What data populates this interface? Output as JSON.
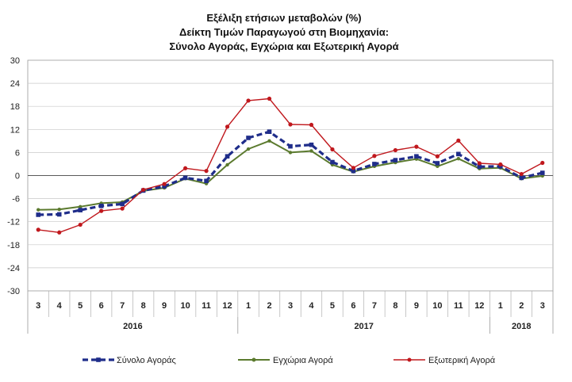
{
  "chart_data": {
    "type": "line",
    "title": [
      "Εξέλιξη ετήσιων μεταβολών (%)",
      "Δείκτη Τιμών Παραγωγού στη Βιομηχανία:",
      "Σύνολο Αγοράς, Εγχώρια και Εξωτερική Αγορά"
    ],
    "categories": [
      "3",
      "4",
      "5",
      "6",
      "7",
      "8",
      "9",
      "10",
      "11",
      "12",
      "1",
      "2",
      "3",
      "4",
      "5",
      "6",
      "7",
      "8",
      "9",
      "10",
      "11",
      "12",
      "1",
      "2",
      "3"
    ],
    "years": [
      {
        "label": "2016",
        "from": 0,
        "to": 9
      },
      {
        "label": "2017",
        "from": 10,
        "to": 21
      },
      {
        "label": "2018",
        "from": 22,
        "to": 24
      }
    ],
    "ylim": [
      -30,
      30
    ],
    "yticks": [
      30,
      24,
      18,
      12,
      6,
      0,
      -6,
      -12,
      -18,
      -24,
      -30
    ],
    "xlabel": "",
    "ylabel": "",
    "legend_position": "bottom",
    "series": [
      {
        "name": "Σύνολο Αγοράς",
        "color": "#1f2d8a",
        "style": "dashed",
        "values": [
          -10.2,
          -10.1,
          -9.0,
          -7.9,
          -7.4,
          -3.9,
          -2.8,
          -0.6,
          -1.4,
          5.0,
          9.8,
          11.4,
          7.6,
          8.0,
          3.5,
          1.2,
          3.0,
          4.0,
          5.0,
          3.2,
          5.6,
          2.3,
          2.4,
          -0.6,
          0.7
        ]
      },
      {
        "name": "Εγχώρια Αγορά",
        "color": "#5b7a2e",
        "style": "solid",
        "values": [
          -8.9,
          -8.8,
          -8.1,
          -7.2,
          -6.9,
          -4.0,
          -3.2,
          -0.8,
          -2.1,
          2.8,
          6.9,
          9.0,
          6.0,
          6.4,
          2.8,
          1.0,
          2.4,
          3.4,
          4.3,
          2.4,
          4.4,
          1.8,
          2.0,
          -0.8,
          -0.1
        ]
      },
      {
        "name": "Εξωτερική Αγορά",
        "color": "#c0181d",
        "style": "solid",
        "values": [
          -14.1,
          -14.8,
          -12.8,
          -9.2,
          -8.6,
          -3.7,
          -2.2,
          1.9,
          1.2,
          12.7,
          19.5,
          20.0,
          13.3,
          13.2,
          6.8,
          2.0,
          5.1,
          6.6,
          7.5,
          5.0,
          9.1,
          3.2,
          2.9,
          0.4,
          3.3
        ]
      }
    ]
  }
}
